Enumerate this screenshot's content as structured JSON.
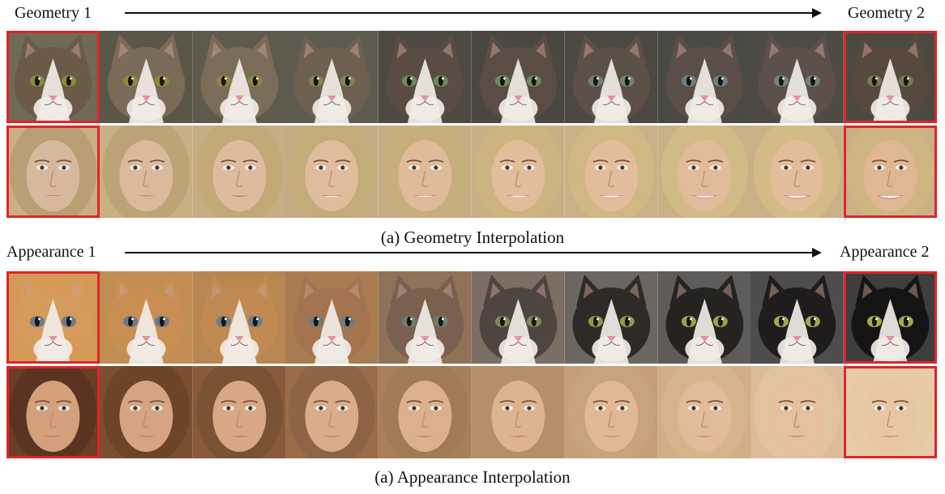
{
  "geometry": {
    "label_left": "Geometry 1",
    "label_right": "Geometry 2",
    "caption": "(a) Geometry Interpolation",
    "rows": [
      {
        "subject": "cat",
        "bg": [
          "#6f6a55",
          "#5a5648",
          "#5e5a4c",
          "#5d5a4e",
          "#4e4a42",
          "#4a4640",
          "#4c4842",
          "#4a4a44",
          "#4d4b44",
          "#4b4a40"
        ],
        "fur": [
          "#6b5a48",
          "#7a6a58",
          "#7b6c5a",
          "#6e5f50",
          "#5a4c42",
          "#5b4d44",
          "#5d5046",
          "#5a4e46",
          "#5c5048",
          "#57493e"
        ],
        "eye": [
          "#8a8a3a",
          "#8a8a3a",
          "#8a8a3a",
          "#7e8a48",
          "#6f8a58",
          "#6f8a60",
          "#6f8470",
          "#6f8080",
          "#6f8478",
          "#777a52"
        ]
      },
      {
        "subject": "face",
        "bg": [
          "#c9b083",
          "#c8af84",
          "#c6ad84",
          "#c5ab83",
          "#c7ad84",
          "#caaf85",
          "#cab086",
          "#c9b085",
          "#cab086",
          "#cab087"
        ],
        "hair": [
          "#b89f74",
          "#bca477",
          "#c2a977",
          "#c4ab7a",
          "#c7ae7d",
          "#cdb380",
          "#d0b783",
          "#d2ba86",
          "#d3bb88",
          "#cfb582"
        ],
        "skin": [
          "#d8b89c",
          "#dbba9c",
          "#ddbc9d",
          "#dfbc9b",
          "#e0bb99",
          "#e2bd9a",
          "#e3bd9b",
          "#e2bc9a",
          "#e3bc9a",
          "#dfb793"
        ],
        "smile": [
          0,
          0.1,
          0.2,
          0.35,
          0.5,
          0.6,
          0.75,
          0.85,
          0.95,
          1
        ]
      }
    ]
  },
  "appearance": {
    "label_left": "Appearance 1",
    "label_right": "Appearance 2",
    "caption": "(a) Appearance Interpolation",
    "rows": [
      {
        "subject": "cat",
        "bg": [
          "#d49a55",
          "#c28d52",
          "#b88650",
          "#a87c50",
          "#8f7258",
          "#7c6e62",
          "#6b6662",
          "#5e5c5a",
          "#4e4c4c",
          "#3e3e3e"
        ],
        "fur": [
          "#d69a5a",
          "#c98e52",
          "#c08a52",
          "#a47450",
          "#7a6050",
          "#4e4440",
          "#2e2a28",
          "#252322",
          "#1e1c1c",
          "#141414"
        ],
        "eye": [
          "#6a7a8a",
          "#6a7a8a",
          "#6c7c88",
          "#6e7c80",
          "#707e70",
          "#7e8a5a",
          "#8e9a48",
          "#9aa24a",
          "#a2a84a",
          "#a4aa48"
        ]
      },
      {
        "subject": "face",
        "bg": [
          "#6a3e24",
          "#7c4e30",
          "#8a5a3a",
          "#9a6c48",
          "#aa7e58",
          "#b88e68",
          "#c69e78",
          "#d2ae88",
          "#dcbc98",
          "#e6cca8"
        ],
        "hair": [
          "#5a3420",
          "#6e4428",
          "#7c5234",
          "#8e6444",
          "#a27a56",
          "#b68e68",
          "#c8a27a",
          "#d6b48c",
          "#e0c29c",
          "#e6caa4"
        ],
        "skin": [
          "#d4a07c",
          "#d6a482",
          "#d8a884",
          "#daac88",
          "#dcb08c",
          "#deb490",
          "#e0b894",
          "#e2bc98",
          "#e4c09c",
          "#e8c6a4"
        ],
        "smile": [
          0.15,
          0.15,
          0.15,
          0.15,
          0.15,
          0.15,
          0.15,
          0.15,
          0.15,
          0.15
        ]
      }
    ]
  }
}
